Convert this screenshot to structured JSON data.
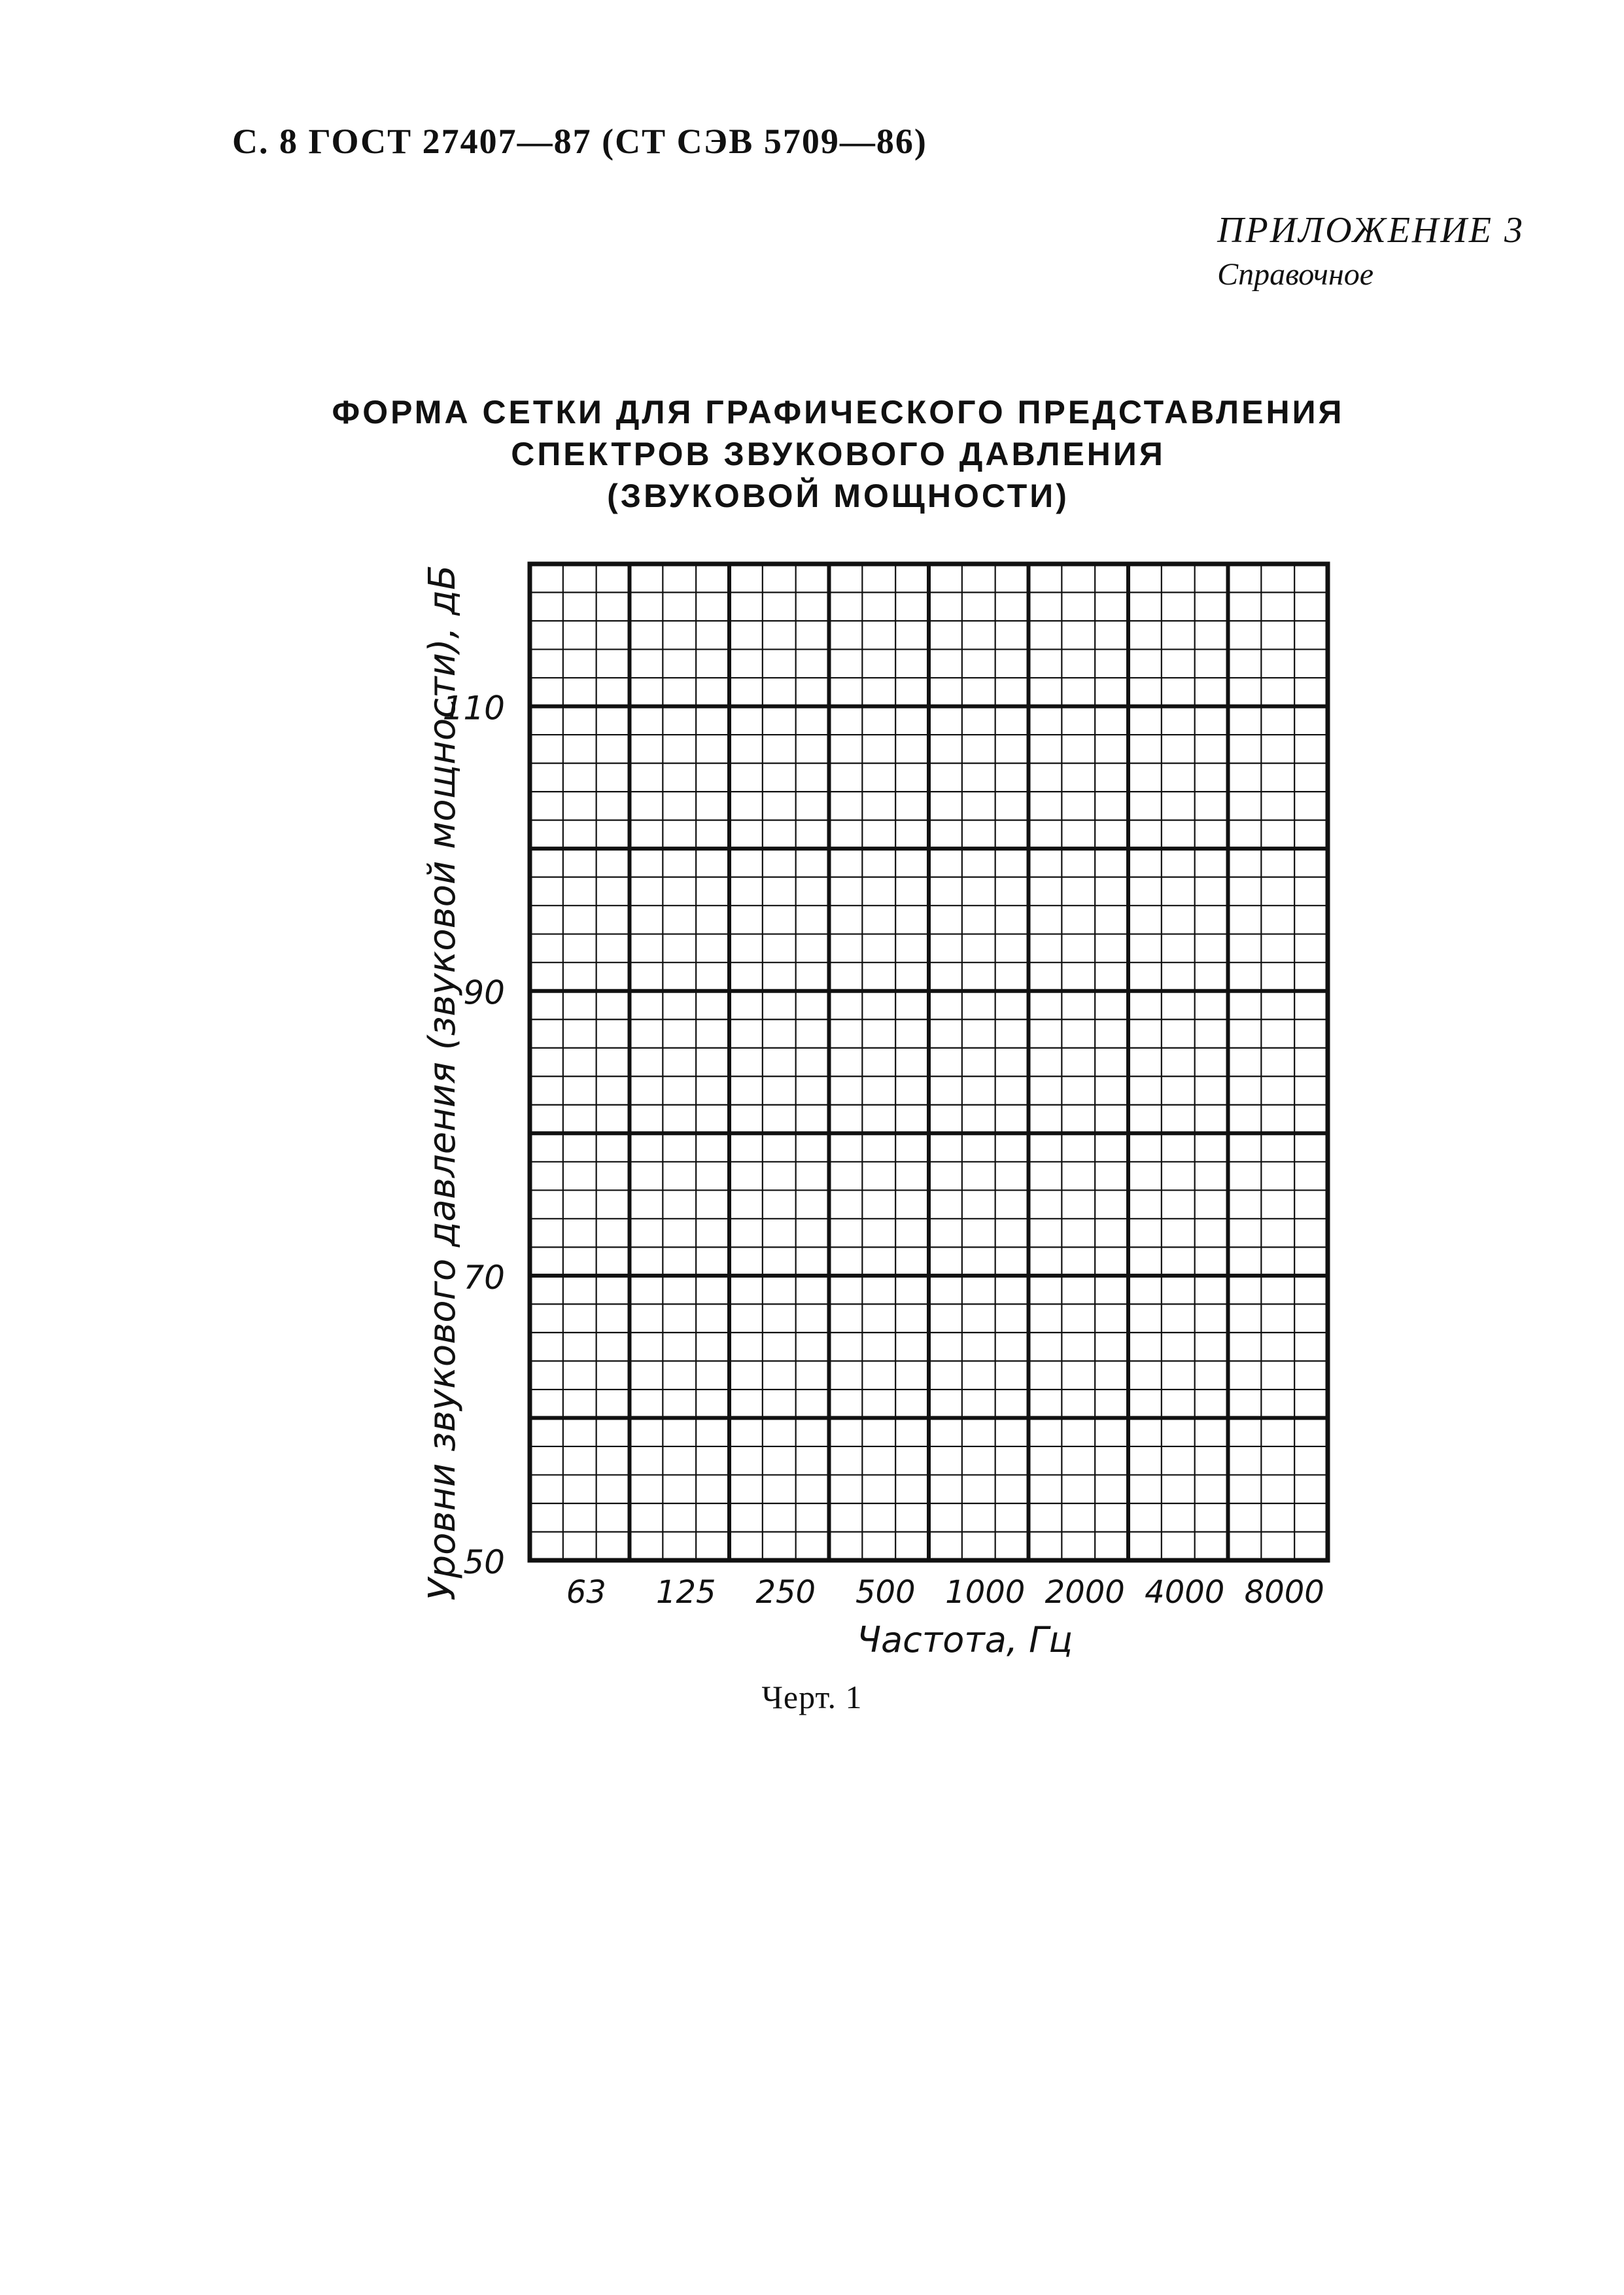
{
  "header": {
    "text": "С. 8 ГОСТ 27407—87 (СТ СЭВ 5709—86)"
  },
  "appendix": {
    "label": "ПРИЛОЖЕНИЕ 3",
    "type": "Справочное"
  },
  "title": {
    "lines": [
      "ФОРМА СЕТКИ ДЛЯ ГРАФИЧЕСКОГО ПРЕДСТАВЛЕНИЯ",
      "СПЕКТРОВ ЗВУКОВОГО ДАВЛЕНИЯ",
      "(ЗВУКОВОЙ МОЩНОСТИ)"
    ]
  },
  "chart_data": {
    "type": "grid",
    "x_scale": "octave",
    "xlabel": "Частота, Гц",
    "ylabel": "Уровни звукового давления (звуковой мощности), дБ",
    "x_ticks": [
      "63",
      "125",
      "250",
      "500",
      "1000",
      "2000",
      "4000",
      "8000"
    ],
    "y_ticks": [
      50,
      70,
      90,
      110
    ],
    "ylim": [
      50,
      120
    ],
    "y_minor_step": 2,
    "y_major_step": 10,
    "grid": true
  },
  "caption": "Черт. 1"
}
